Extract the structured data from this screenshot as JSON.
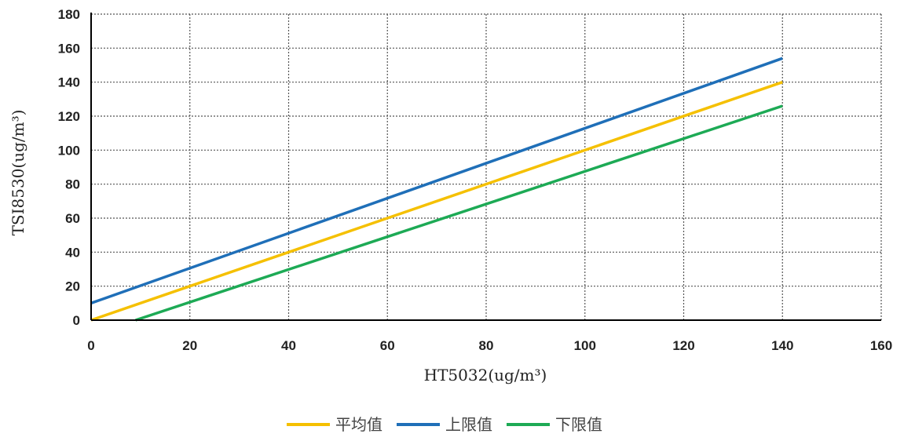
{
  "chart_data": {
    "type": "line",
    "title": "",
    "xlabel": "HT5032(ug/m³)",
    "ylabel": "TSI8530(ug/m³)",
    "xlim": [
      0,
      160
    ],
    "ylim": [
      0,
      180
    ],
    "xticks": [
      0,
      20,
      40,
      60,
      80,
      100,
      120,
      140,
      160
    ],
    "yticks": [
      0,
      20,
      40,
      60,
      80,
      100,
      120,
      140,
      160,
      180
    ],
    "grid": true,
    "legend_position": "bottom",
    "series": [
      {
        "name": "平均值",
        "color": "#F5C000",
        "x": [
          0,
          140
        ],
        "y": [
          0,
          140
        ]
      },
      {
        "name": "上限值",
        "color": "#1F6FB8",
        "x": [
          0,
          140
        ],
        "y": [
          10,
          154
        ]
      },
      {
        "name": "下限值",
        "color": "#1DAA55",
        "x": [
          9,
          140
        ],
        "y": [
          0,
          126
        ]
      }
    ]
  }
}
